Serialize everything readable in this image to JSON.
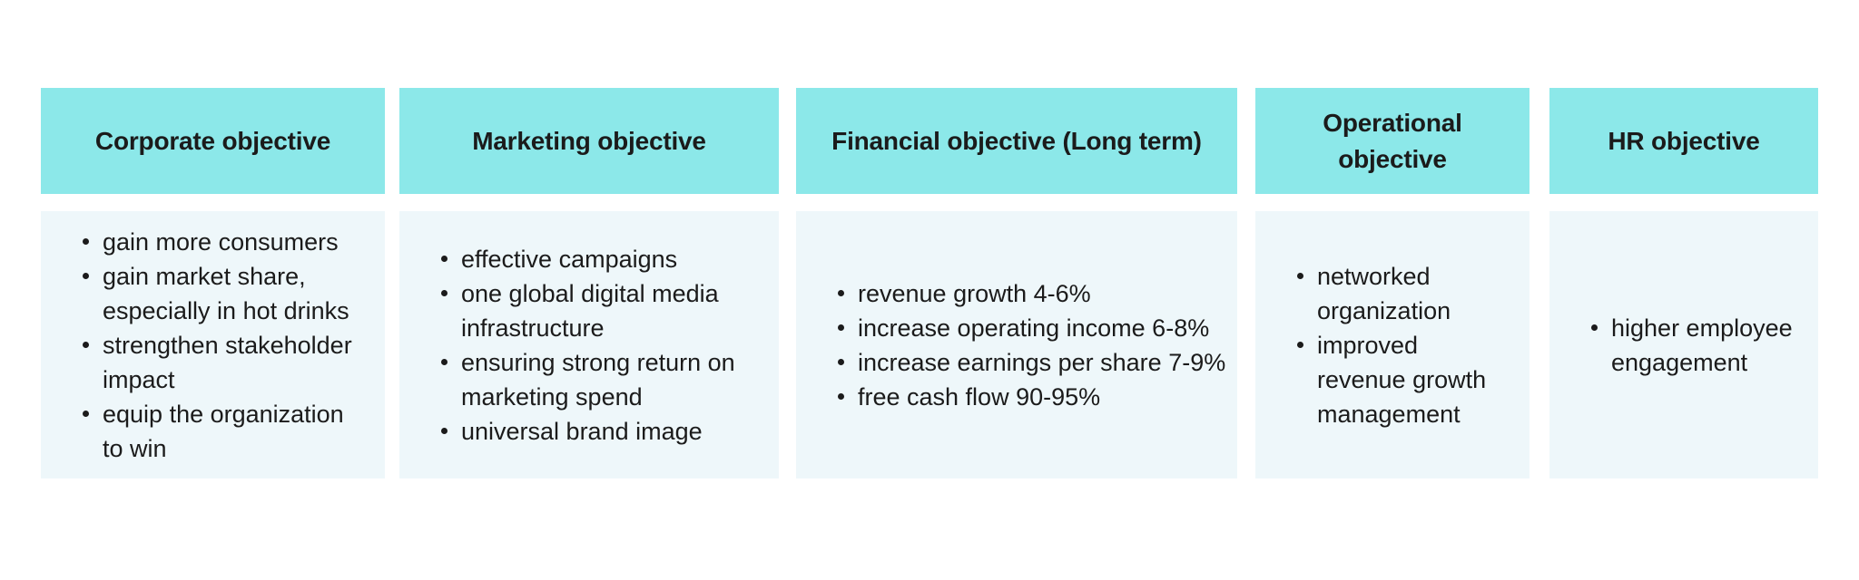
{
  "colors": {
    "header_bg": "#8ce8e9",
    "body_bg": "#eef7fa",
    "text": "#1b1b1b",
    "page_bg": "#ffffff"
  },
  "columns": [
    {
      "header": "Corporate objective",
      "items": [
        "gain more consumers",
        "gain market share, especially in hot drinks",
        "strengthen stakeholder impact",
        "equip the organization to win"
      ]
    },
    {
      "header": "Marketing objective",
      "items": [
        "effective campaigns",
        "one global digital media infrastructure",
        "ensuring strong return on marketing spend",
        "universal brand image"
      ]
    },
    {
      "header": "Financial objective (Long term)",
      "items": [
        "revenue growth 4-6%",
        "increase operating income 6-8%",
        "increase earnings per share 7-9%",
        "free cash flow 90-95%"
      ]
    },
    {
      "header": "Operational objective",
      "items": [
        "networked organization",
        "improved revenue growth management"
      ]
    },
    {
      "header": "HR objective",
      "items": [
        "higher employee engagement"
      ]
    }
  ]
}
